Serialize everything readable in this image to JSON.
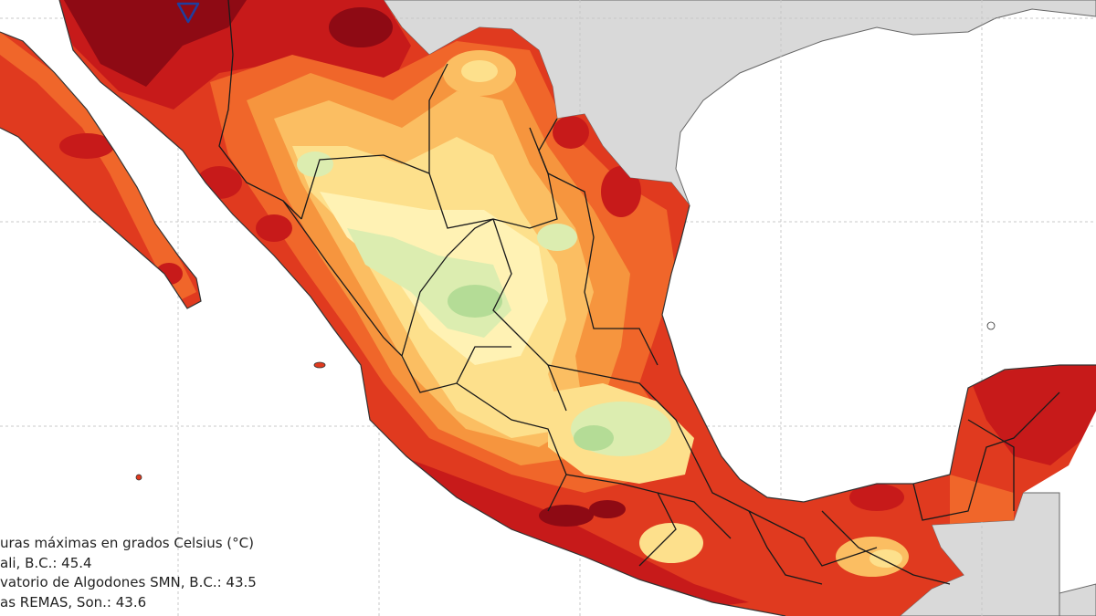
{
  "map": {
    "colors": {
      "ocean": "#ffffff",
      "land_outside": "#d9d9d9",
      "grid": "#c8c8c8",
      "border_state": "#1a1a1a",
      "level_1_darkest": "#8e0a14",
      "level_2": "#c71a1a",
      "level_3": "#e03a1f",
      "level_4": "#f0662a",
      "level_5": "#f6953e",
      "level_6": "#fbbe62",
      "level_7": "#fde08c",
      "level_8": "#fff2b4",
      "level_9": "#dcedb0",
      "level_10": "#b4dc96",
      "level_11_coolest": "#7fc07a"
    },
    "marker": {
      "icon": "inverted-triangle-icon",
      "color": "#1f3e9e"
    }
  },
  "legend": {
    "line1": "uras máximas en grados Celsius (°C)",
    "line2": "ali, B.C.: 45.4",
    "line3": "vatorio de Algodones SMN, B.C.: 43.5",
    "line4": "as REMAS, Son.: 43.6"
  }
}
